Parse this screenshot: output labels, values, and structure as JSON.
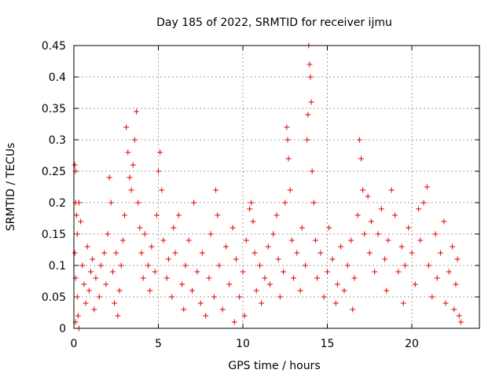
{
  "chart_data": {
    "type": "scatter",
    "title": "Day 185 of 2022, SRMTID for receiver ijmu",
    "xlabel": "GPS time / hours",
    "ylabel": "SRMTID / TECUs",
    "xlim": [
      0,
      24
    ],
    "ylim": [
      0,
      0.45
    ],
    "xticks": [
      0,
      5,
      10,
      15,
      20
    ],
    "xtick_labels": [
      "0",
      "5",
      "10",
      "15",
      "20"
    ],
    "yticks": [
      0,
      0.05,
      0.1,
      0.15,
      0.2,
      0.25,
      0.3,
      0.35,
      0.4,
      0.45
    ],
    "ytick_labels": [
      "0",
      "0.05",
      "0.1",
      "0.15",
      "0.2",
      "0.25",
      "0.3",
      "0.35",
      "0.4",
      "0.45"
    ],
    "grid": true,
    "marker": "plus",
    "color": "#e00000",
    "series": [
      {
        "name": "SRMTID",
        "points": [
          [
            0.05,
            0.26
          ],
          [
            0.1,
            0.25
          ],
          [
            0.1,
            0.2
          ],
          [
            0.15,
            0.18
          ],
          [
            0.2,
            0.15
          ],
          [
            0.3,
            0.2
          ],
          [
            0.05,
            0.12
          ],
          [
            0.1,
            0.08
          ],
          [
            0.2,
            0.05
          ],
          [
            0.25,
            0.02
          ],
          [
            0.1,
            0.01
          ],
          [
            0.3,
            0.0
          ],
          [
            0.5,
            0.1
          ],
          [
            0.6,
            0.07
          ],
          [
            0.7,
            0.04
          ],
          [
            0.8,
            0.13
          ],
          [
            0.9,
            0.06
          ],
          [
            1.0,
            0.09
          ],
          [
            1.1,
            0.11
          ],
          [
            1.2,
            0.03
          ],
          [
            1.3,
            0.08
          ],
          [
            1.5,
            0.05
          ],
          [
            1.6,
            0.1
          ],
          [
            1.8,
            0.12
          ],
          [
            1.9,
            0.07
          ],
          [
            2.0,
            0.15
          ],
          [
            2.1,
            0.24
          ],
          [
            2.2,
            0.2
          ],
          [
            2.3,
            0.09
          ],
          [
            2.4,
            0.04
          ],
          [
            2.5,
            0.12
          ],
          [
            2.6,
            0.02
          ],
          [
            2.7,
            0.06
          ],
          [
            2.8,
            0.1
          ],
          [
            2.9,
            0.14
          ],
          [
            3.0,
            0.18
          ],
          [
            3.1,
            0.32
          ],
          [
            3.2,
            0.28
          ],
          [
            3.3,
            0.24
          ],
          [
            3.4,
            0.22
          ],
          [
            3.5,
            0.26
          ],
          [
            3.6,
            0.3
          ],
          [
            3.7,
            0.345
          ],
          [
            3.8,
            0.2
          ],
          [
            3.9,
            0.16
          ],
          [
            4.0,
            0.12
          ],
          [
            4.1,
            0.08
          ],
          [
            4.2,
            0.15
          ],
          [
            4.4,
            0.1
          ],
          [
            4.5,
            0.06
          ],
          [
            4.6,
            0.13
          ],
          [
            4.8,
            0.09
          ],
          [
            4.9,
            0.18
          ],
          [
            5.0,
            0.25
          ],
          [
            5.1,
            0.28
          ],
          [
            5.2,
            0.22
          ],
          [
            5.3,
            0.14
          ],
          [
            5.5,
            0.08
          ],
          [
            5.6,
            0.11
          ],
          [
            5.8,
            0.05
          ],
          [
            5.9,
            0.16
          ],
          [
            6.0,
            0.12
          ],
          [
            6.2,
            0.18
          ],
          [
            6.4,
            0.07
          ],
          [
            6.5,
            0.03
          ],
          [
            6.6,
            0.1
          ],
          [
            6.8,
            0.14
          ],
          [
            7.0,
            0.06
          ],
          [
            7.1,
            0.2
          ],
          [
            7.3,
            0.09
          ],
          [
            7.5,
            0.04
          ],
          [
            7.6,
            0.12
          ],
          [
            7.8,
            0.02
          ],
          [
            8.0,
            0.08
          ],
          [
            8.1,
            0.15
          ],
          [
            8.3,
            0.05
          ],
          [
            8.4,
            0.22
          ],
          [
            8.5,
            0.18
          ],
          [
            8.6,
            0.1
          ],
          [
            8.8,
            0.03
          ],
          [
            9.0,
            0.13
          ],
          [
            9.2,
            0.07
          ],
          [
            9.4,
            0.16
          ],
          [
            9.5,
            0.01
          ],
          [
            9.6,
            0.11
          ],
          [
            9.8,
            0.05
          ],
          [
            10.0,
            0.09
          ],
          [
            10.1,
            0.02
          ],
          [
            10.2,
            0.14
          ],
          [
            10.4,
            0.19
          ],
          [
            10.5,
            0.2
          ],
          [
            10.6,
            0.17
          ],
          [
            10.7,
            0.12
          ],
          [
            10.8,
            0.06
          ],
          [
            11.0,
            0.1
          ],
          [
            11.1,
            0.04
          ],
          [
            11.3,
            0.08
          ],
          [
            11.5,
            0.13
          ],
          [
            11.6,
            0.07
          ],
          [
            11.8,
            0.15
          ],
          [
            12.0,
            0.18
          ],
          [
            12.1,
            0.11
          ],
          [
            12.2,
            0.05
          ],
          [
            12.4,
            0.09
          ],
          [
            12.5,
            0.2
          ],
          [
            12.6,
            0.32
          ],
          [
            12.65,
            0.3
          ],
          [
            12.7,
            0.27
          ],
          [
            12.8,
            0.22
          ],
          [
            12.9,
            0.14
          ],
          [
            13.0,
            0.08
          ],
          [
            13.2,
            0.12
          ],
          [
            13.4,
            0.06
          ],
          [
            13.5,
            0.16
          ],
          [
            13.7,
            0.1
          ],
          [
            13.8,
            0.3
          ],
          [
            13.85,
            0.34
          ],
          [
            13.9,
            0.45
          ],
          [
            13.95,
            0.42
          ],
          [
            14.0,
            0.4
          ],
          [
            14.05,
            0.36
          ],
          [
            14.1,
            0.25
          ],
          [
            14.2,
            0.2
          ],
          [
            14.3,
            0.14
          ],
          [
            14.4,
            0.08
          ],
          [
            14.6,
            0.12
          ],
          [
            14.8,
            0.05
          ],
          [
            15.0,
            0.09
          ],
          [
            15.1,
            0.16
          ],
          [
            15.3,
            0.11
          ],
          [
            15.5,
            0.04
          ],
          [
            15.6,
            0.07
          ],
          [
            15.8,
            0.13
          ],
          [
            16.0,
            0.06
          ],
          [
            16.2,
            0.1
          ],
          [
            16.4,
            0.14
          ],
          [
            16.5,
            0.03
          ],
          [
            16.6,
            0.08
          ],
          [
            16.8,
            0.18
          ],
          [
            16.9,
            0.3
          ],
          [
            17.0,
            0.27
          ],
          [
            17.1,
            0.22
          ],
          [
            17.2,
            0.15
          ],
          [
            17.4,
            0.21
          ],
          [
            17.5,
            0.12
          ],
          [
            17.6,
            0.17
          ],
          [
            17.8,
            0.09
          ],
          [
            18.0,
            0.15
          ],
          [
            18.2,
            0.19
          ],
          [
            18.4,
            0.11
          ],
          [
            18.5,
            0.06
          ],
          [
            18.6,
            0.14
          ],
          [
            18.8,
            0.22
          ],
          [
            19.0,
            0.18
          ],
          [
            19.2,
            0.09
          ],
          [
            19.4,
            0.13
          ],
          [
            19.5,
            0.04
          ],
          [
            19.6,
            0.1
          ],
          [
            19.8,
            0.16
          ],
          [
            20.0,
            0.12
          ],
          [
            20.2,
            0.07
          ],
          [
            20.4,
            0.19
          ],
          [
            20.5,
            0.14
          ],
          [
            20.7,
            0.2
          ],
          [
            20.9,
            0.225
          ],
          [
            21.0,
            0.1
          ],
          [
            21.2,
            0.05
          ],
          [
            21.4,
            0.15
          ],
          [
            21.5,
            0.08
          ],
          [
            21.7,
            0.12
          ],
          [
            21.9,
            0.17
          ],
          [
            22.0,
            0.04
          ],
          [
            22.2,
            0.09
          ],
          [
            22.4,
            0.13
          ],
          [
            22.5,
            0.03
          ],
          [
            22.6,
            0.07
          ],
          [
            22.7,
            0.11
          ],
          [
            22.8,
            0.02
          ],
          [
            22.9,
            0.01
          ],
          [
            0.4,
            0.17
          ]
        ]
      }
    ]
  }
}
